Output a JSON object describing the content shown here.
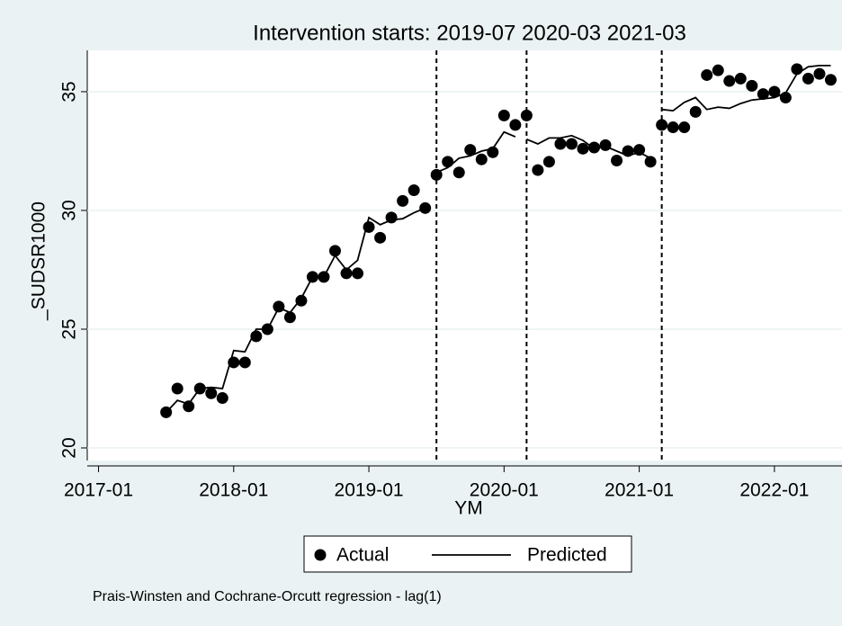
{
  "chart_data": {
    "type": "line",
    "title": "Intervention starts: 2019-07 2020-03 2021-03",
    "xlabel": "YM",
    "ylabel": "_SUDSR1000",
    "note": "Prais-Winsten and Cochrane-Orcutt regression - lag(1)",
    "interventions": [
      "2019-07",
      "2020-03",
      "2021-03"
    ],
    "x": [
      "2017-07",
      "2017-08",
      "2017-09",
      "2017-10",
      "2017-11",
      "2017-12",
      "2018-01",
      "2018-02",
      "2018-03",
      "2018-04",
      "2018-05",
      "2018-06",
      "2018-07",
      "2018-08",
      "2018-09",
      "2018-10",
      "2018-11",
      "2018-12",
      "2019-01",
      "2019-02",
      "2019-03",
      "2019-04",
      "2019-05",
      "2019-06",
      "2019-07",
      "2019-08",
      "2019-09",
      "2019-10",
      "2019-11",
      "2019-12",
      "2020-01",
      "2020-02",
      "2020-03",
      "2020-04",
      "2020-05",
      "2020-06",
      "2020-07",
      "2020-08",
      "2020-09",
      "2020-10",
      "2020-11",
      "2020-12",
      "2021-01",
      "2021-02",
      "2021-03",
      "2021-04",
      "2021-05",
      "2021-06",
      "2021-07",
      "2021-08",
      "2021-09",
      "2021-10",
      "2021-11",
      "2021-12",
      "2022-01",
      "2022-02",
      "2022-03",
      "2022-04",
      "2022-05",
      "2022-06"
    ],
    "series": [
      {
        "name": "Actual",
        "style": "markers",
        "color": "#000000",
        "values": [
          21.5,
          22.5,
          21.75,
          22.5,
          22.3,
          22.1,
          23.6,
          23.6,
          24.7,
          25.0,
          25.95,
          25.5,
          26.2,
          27.2,
          27.2,
          28.3,
          27.35,
          27.35,
          29.3,
          28.85,
          29.7,
          30.4,
          30.85,
          30.1,
          31.5,
          32.05,
          31.6,
          32.55,
          32.15,
          32.45,
          34.0,
          33.6,
          34.0,
          31.7,
          32.05,
          32.8,
          32.8,
          32.6,
          32.65,
          32.75,
          32.1,
          32.5,
          32.55,
          32.05,
          33.6,
          33.5,
          33.5,
          34.15,
          35.7,
          35.9,
          35.45,
          35.55,
          35.25,
          34.9,
          35.0,
          34.75,
          35.95,
          35.55,
          35.75,
          35.5
        ]
      },
      {
        "name": "Predicted",
        "style": "line",
        "color": "#000000",
        "values": [
          21.5,
          22.0,
          21.85,
          22.5,
          22.55,
          22.5,
          24.1,
          24.05,
          25.0,
          25.0,
          25.9,
          25.7,
          26.3,
          27.2,
          27.2,
          28.1,
          27.5,
          27.9,
          29.7,
          29.4,
          29.6,
          29.65,
          29.9,
          30.1,
          31.6,
          31.8,
          32.2,
          32.3,
          32.5,
          32.6,
          33.3,
          33.1,
          33.0,
          32.8,
          33.05,
          33.05,
          33.15,
          32.95,
          32.6,
          32.7,
          32.5,
          32.3,
          32.45,
          32.2,
          34.25,
          34.2,
          34.55,
          34.75,
          34.25,
          34.35,
          34.3,
          34.5,
          34.65,
          34.7,
          34.75,
          34.95,
          35.75,
          36.05,
          36.1,
          36.1
        ]
      }
    ],
    "xlim": [
      "2016-12",
      "2022-07"
    ],
    "xticks": [
      "2017-01",
      "2018-01",
      "2019-01",
      "2020-01",
      "2021-01",
      "2022-01"
    ],
    "ylim": [
      19.47,
      36.74
    ],
    "yticks": [
      20,
      25,
      30,
      35
    ],
    "grid": true
  }
}
